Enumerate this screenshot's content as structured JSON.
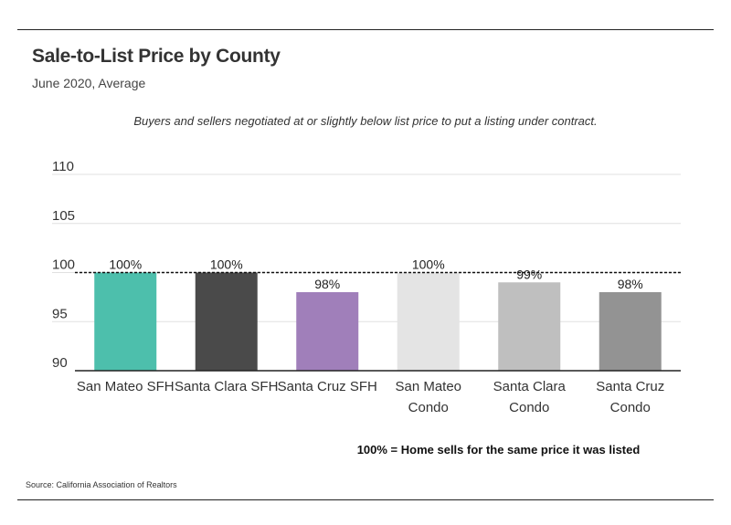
{
  "header": {
    "title": "Sale-to-List Price by County",
    "subtitle": "June 2020, Average"
  },
  "annotation": "Buyers and sellers negotiated at or slightly below list price to put a listing under contract.",
  "footnote": "100% = Home sells for the same price it was listed",
  "source": "Source:  California Association of Realtors",
  "chart_data": {
    "type": "bar",
    "categories": [
      [
        "San Mateo SFH"
      ],
      [
        "Santa Clara SFH"
      ],
      [
        "Santa Cruz SFH"
      ],
      [
        "San Mateo",
        "Condo"
      ],
      [
        "Santa Clara",
        "Condo"
      ],
      [
        "Santa Cruz",
        "Condo"
      ]
    ],
    "values": [
      100,
      100,
      98,
      100,
      99,
      98
    ],
    "data_labels": [
      "100%",
      "100%",
      "98%",
      "100%",
      "99%",
      "98%"
    ],
    "colors": [
      "#4dbfac",
      "#4a4a4a",
      "#a07fba",
      "#e4e4e4",
      "#bfbfbf",
      "#939393"
    ],
    "ylim": [
      90,
      110
    ],
    "yticks": [
      90,
      95,
      100,
      105,
      110
    ],
    "reference_line": 100,
    "grid": true,
    "title": "Sale-to-List Price by County",
    "xlabel": "",
    "ylabel": ""
  }
}
